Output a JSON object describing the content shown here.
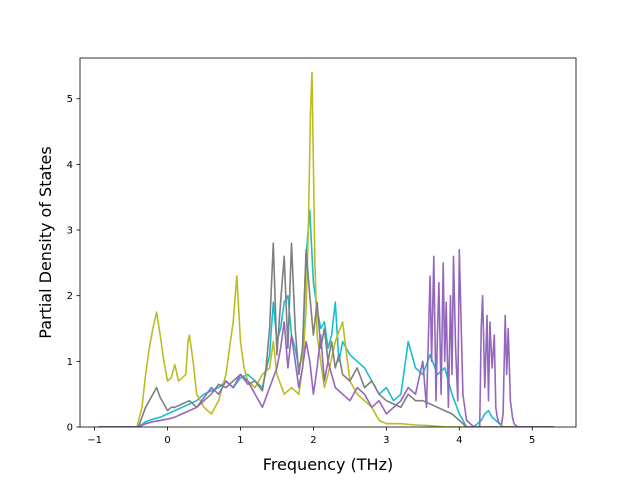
{
  "chart_data": {
    "type": "line",
    "title": "",
    "xlabel": "Frequency (THz)",
    "ylabel": "Partial Density of States",
    "xlim": [
      -1.2,
      5.6
    ],
    "ylim": [
      0,
      5.62
    ],
    "xticks": [
      -1,
      0,
      1,
      2,
      3,
      4,
      5
    ],
    "yticks": [
      0,
      1,
      2,
      3,
      4,
      5
    ],
    "grid": false,
    "legend": "none",
    "series": [
      {
        "color": "#17becf",
        "x": [
          -0.95,
          -0.4,
          -0.3,
          -0.2,
          -0.1,
          0,
          0.1,
          0.2,
          0.3,
          0.4,
          0.5,
          0.6,
          0.7,
          0.8,
          0.9,
          1.0,
          1.1,
          1.2,
          1.3,
          1.4,
          1.45,
          1.5,
          1.55,
          1.6,
          1.65,
          1.7,
          1.75,
          1.8,
          1.85,
          1.9,
          1.95,
          2.0,
          2.05,
          2.1,
          2.15,
          2.2,
          2.25,
          2.3,
          2.35,
          2.4,
          2.5,
          2.6,
          2.7,
          2.8,
          2.9,
          3.0,
          3.1,
          3.2,
          3.3,
          3.4,
          3.5,
          3.6,
          3.7,
          3.8,
          3.9,
          4.0,
          4.1,
          4.2,
          4.3,
          4.35,
          4.4,
          4.45,
          4.5,
          4.6,
          4.7,
          4.8,
          5.3
        ],
        "y": [
          0,
          0,
          0.08,
          0.12,
          0.15,
          0.2,
          0.25,
          0.3,
          0.35,
          0.4,
          0.5,
          0.55,
          0.6,
          0.7,
          0.6,
          0.75,
          0.8,
          0.7,
          0.6,
          1.1,
          1.9,
          1.3,
          1.5,
          1.9,
          2.0,
          1.4,
          1.2,
          0.9,
          1.1,
          2.6,
          3.3,
          2.2,
          1.8,
          1.5,
          1.6,
          1.2,
          1.4,
          1.9,
          1.0,
          1.3,
          1.1,
          1.0,
          0.9,
          0.7,
          0.5,
          0.6,
          0.4,
          0.5,
          1.3,
          0.9,
          0.8,
          1.1,
          0.8,
          0.9,
          0.5,
          0.2,
          0,
          0,
          0.1,
          0.2,
          0.25,
          0.15,
          0.1,
          0,
          0,
          0,
          0
        ]
      },
      {
        "color": "#bcbd22",
        "x": [
          -0.95,
          -0.42,
          -0.35,
          -0.3,
          -0.25,
          -0.2,
          -0.15,
          -0.1,
          -0.05,
          0,
          0.05,
          0.1,
          0.15,
          0.2,
          0.25,
          0.28,
          0.3,
          0.35,
          0.4,
          0.5,
          0.6,
          0.7,
          0.8,
          0.85,
          0.9,
          0.95,
          1.0,
          1.05,
          1.1,
          1.2,
          1.3,
          1.4,
          1.45,
          1.5,
          1.6,
          1.7,
          1.8,
          1.85,
          1.9,
          1.93,
          1.96,
          1.98,
          2.0,
          2.02,
          2.05,
          2.1,
          2.15,
          2.2,
          2.3,
          2.4,
          2.5,
          2.6,
          2.7,
          2.8,
          2.9,
          3.0,
          3.2,
          3.4,
          3.6,
          3.8,
          4.0,
          5.3
        ],
        "y": [
          0,
          0,
          0.3,
          0.8,
          1.2,
          1.5,
          1.75,
          1.4,
          1.0,
          0.7,
          0.75,
          0.95,
          0.7,
          0.75,
          0.8,
          1.3,
          1.4,
          1.0,
          0.5,
          0.3,
          0.2,
          0.4,
          0.8,
          1.2,
          1.6,
          2.3,
          1.3,
          0.9,
          0.7,
          0.6,
          0.8,
          0.9,
          1.3,
          0.8,
          0.5,
          0.6,
          0.5,
          0.9,
          1.8,
          3.0,
          4.8,
          5.4,
          4.0,
          2.5,
          1.4,
          1.0,
          0.6,
          0.8,
          1.3,
          1.6,
          0.7,
          0.5,
          0.4,
          0.3,
          0.1,
          0.05,
          0.05,
          0.03,
          0.02,
          0,
          0,
          0
        ]
      },
      {
        "color": "#7f7f7f",
        "x": [
          -0.95,
          -0.4,
          -0.35,
          -0.3,
          -0.25,
          -0.2,
          -0.15,
          -0.1,
          -0.05,
          0,
          0.05,
          0.1,
          0.2,
          0.3,
          0.4,
          0.5,
          0.6,
          0.7,
          0.8,
          0.9,
          1.0,
          1.1,
          1.2,
          1.3,
          1.35,
          1.4,
          1.45,
          1.5,
          1.55,
          1.6,
          1.65,
          1.7,
          1.75,
          1.8,
          1.85,
          1.9,
          1.95,
          2.0,
          2.05,
          2.1,
          2.15,
          2.2,
          2.25,
          2.3,
          2.35,
          2.4,
          2.5,
          2.6,
          2.7,
          2.8,
          2.9,
          3.0,
          3.1,
          3.2,
          3.3,
          3.4,
          3.5,
          3.6,
          3.7,
          3.8,
          3.9,
          4.0,
          4.1,
          4.2,
          5.3
        ],
        "y": [
          0,
          0,
          0.15,
          0.3,
          0.4,
          0.5,
          0.6,
          0.45,
          0.35,
          0.25,
          0.3,
          0.3,
          0.35,
          0.4,
          0.3,
          0.4,
          0.5,
          0.65,
          0.6,
          0.7,
          0.8,
          0.65,
          0.7,
          0.55,
          0.9,
          1.5,
          2.8,
          1.1,
          1.9,
          2.6,
          1.2,
          2.8,
          1.5,
          0.8,
          1.2,
          2.7,
          2.0,
          1.4,
          1.9,
          1.2,
          1.5,
          1.0,
          1.3,
          0.9,
          1.1,
          0.8,
          0.7,
          0.9,
          0.6,
          0.7,
          0.5,
          0.4,
          0.35,
          0.3,
          0.5,
          0.4,
          0.4,
          0.35,
          0.3,
          0.25,
          0.2,
          0.1,
          0,
          0,
          0
        ]
      },
      {
        "color": "#9467bd",
        "x": [
          -0.95,
          -0.4,
          -0.3,
          -0.2,
          -0.1,
          0,
          0.1,
          0.2,
          0.3,
          0.4,
          0.5,
          0.6,
          0.7,
          0.8,
          0.9,
          1.0,
          1.1,
          1.2,
          1.3,
          1.4,
          1.5,
          1.55,
          1.6,
          1.65,
          1.7,
          1.75,
          1.8,
          1.85,
          1.9,
          1.95,
          2.0,
          2.05,
          2.1,
          2.15,
          2.2,
          2.3,
          2.4,
          2.5,
          2.6,
          2.7,
          2.8,
          2.9,
          3.0,
          3.1,
          3.2,
          3.3,
          3.4,
          3.5,
          3.55,
          3.6,
          3.62,
          3.65,
          3.68,
          3.7,
          3.72,
          3.75,
          3.78,
          3.8,
          3.82,
          3.85,
          3.88,
          3.9,
          3.92,
          3.95,
          3.98,
          4.0,
          4.05,
          4.1,
          4.2,
          4.28,
          4.3,
          4.32,
          4.35,
          4.38,
          4.4,
          4.42,
          4.45,
          4.48,
          4.5,
          4.52,
          4.55,
          4.58,
          4.6,
          4.63,
          4.65,
          4.67,
          4.7,
          4.73,
          4.75,
          4.8,
          4.9,
          5.3
        ],
        "y": [
          0,
          0,
          0.05,
          0.08,
          0.1,
          0.12,
          0.15,
          0.2,
          0.25,
          0.3,
          0.45,
          0.6,
          0.5,
          0.7,
          0.6,
          0.8,
          0.7,
          0.5,
          0.3,
          0.6,
          0.9,
          1.2,
          1.6,
          0.9,
          1.4,
          1.0,
          0.6,
          0.9,
          1.3,
          1.0,
          0.5,
          0.9,
          1.4,
          0.7,
          1.0,
          0.6,
          0.5,
          0.4,
          0.6,
          0.5,
          0.3,
          0.4,
          0.2,
          0.3,
          0.4,
          0.6,
          0.5,
          1.0,
          0.3,
          2.3,
          1.0,
          2.6,
          0.4,
          1.4,
          2.2,
          0.5,
          2.5,
          1.0,
          1.9,
          0.3,
          2.0,
          0.8,
          2.6,
          1.2,
          0.4,
          2.7,
          0.5,
          0.1,
          0,
          0,
          1.5,
          2.0,
          0.6,
          1.7,
          0.4,
          1.6,
          0.9,
          1.4,
          0.3,
          0.15,
          0.05,
          0.05,
          0.2,
          1.7,
          0.8,
          1.5,
          0.4,
          0.15,
          0.05,
          0,
          0,
          0
        ]
      }
    ]
  }
}
